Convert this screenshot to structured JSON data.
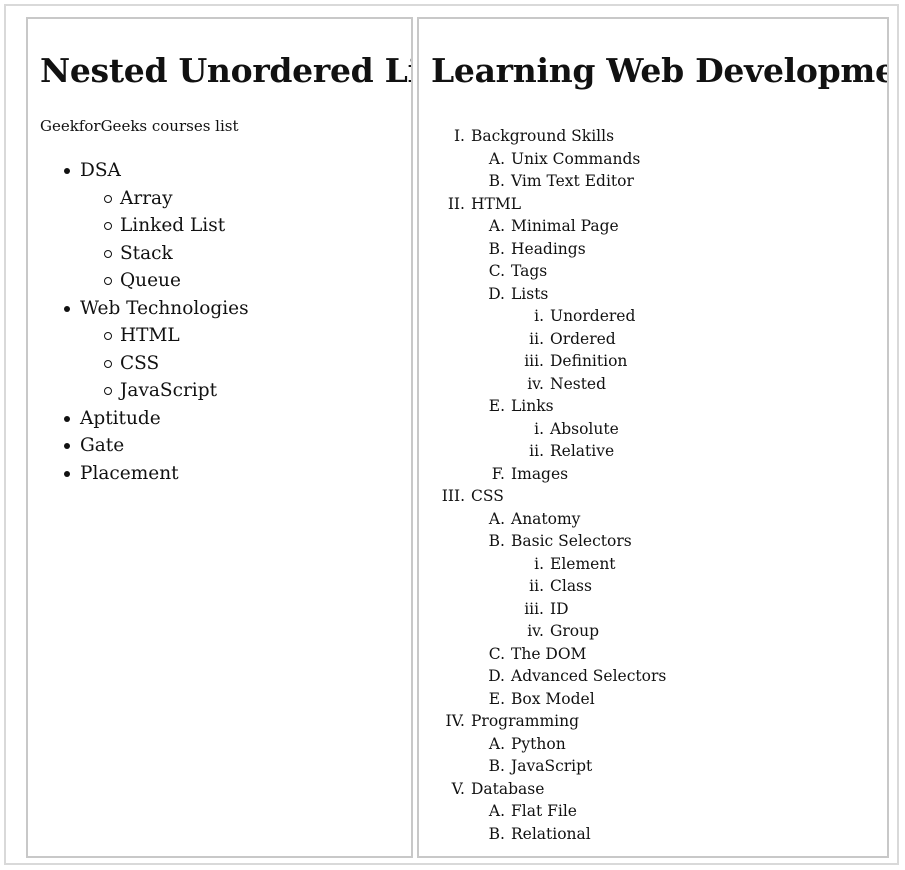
{
  "left_panel": {
    "title": "Nested Unordered List",
    "intro": "GeekforGeeks courses list",
    "items": [
      {
        "label": "DSA",
        "children": [
          "Array",
          "Linked List",
          "Stack",
          "Queue"
        ]
      },
      {
        "label": "Web Technologies",
        "children": [
          "HTML",
          "CSS",
          "JavaScript"
        ]
      },
      {
        "label": "Aptitude",
        "children": []
      },
      {
        "label": "Gate",
        "children": []
      },
      {
        "label": "Placement",
        "children": []
      }
    ]
  },
  "right_panel": {
    "title": "Learning Web Development",
    "outline": [
      {
        "marker": "I.",
        "label": "Background Skills",
        "children": [
          {
            "marker": "A.",
            "label": "Unix Commands",
            "children": []
          },
          {
            "marker": "B.",
            "label": "Vim Text Editor",
            "children": []
          }
        ]
      },
      {
        "marker": "II.",
        "label": "HTML",
        "children": [
          {
            "marker": "A.",
            "label": "Minimal Page",
            "children": []
          },
          {
            "marker": "B.",
            "label": "Headings",
            "children": []
          },
          {
            "marker": "C.",
            "label": "Tags",
            "children": []
          },
          {
            "marker": "D.",
            "label": "Lists",
            "children": [
              {
                "marker": "i.",
                "label": "Unordered"
              },
              {
                "marker": "ii.",
                "label": "Ordered"
              },
              {
                "marker": "iii.",
                "label": "Definition"
              },
              {
                "marker": "iv.",
                "label": "Nested"
              }
            ]
          },
          {
            "marker": "E.",
            "label": "Links",
            "children": [
              {
                "marker": "i.",
                "label": "Absolute"
              },
              {
                "marker": "ii.",
                "label": "Relative"
              }
            ]
          },
          {
            "marker": "F.",
            "label": "Images",
            "children": []
          }
        ]
      },
      {
        "marker": "III.",
        "label": "CSS",
        "children": [
          {
            "marker": "A.",
            "label": "Anatomy",
            "children": []
          },
          {
            "marker": "B.",
            "label": "Basic Selectors",
            "children": [
              {
                "marker": "i.",
                "label": "Element"
              },
              {
                "marker": "ii.",
                "label": "Class"
              },
              {
                "marker": "iii.",
                "label": "ID"
              },
              {
                "marker": "iv.",
                "label": "Group"
              }
            ]
          },
          {
            "marker": "C.",
            "label": "The DOM",
            "children": []
          },
          {
            "marker": "D.",
            "label": "Advanced Selectors",
            "children": []
          },
          {
            "marker": "E.",
            "label": "Box Model",
            "children": []
          }
        ]
      },
      {
        "marker": "IV.",
        "label": "Programming",
        "children": [
          {
            "marker": "A.",
            "label": "Python",
            "children": []
          },
          {
            "marker": "B.",
            "label": "JavaScript",
            "children": []
          }
        ]
      },
      {
        "marker": "V.",
        "label": "Database",
        "children": [
          {
            "marker": "A.",
            "label": "Flat File",
            "children": []
          },
          {
            "marker": "B.",
            "label": "Relational",
            "children": []
          }
        ]
      }
    ]
  }
}
